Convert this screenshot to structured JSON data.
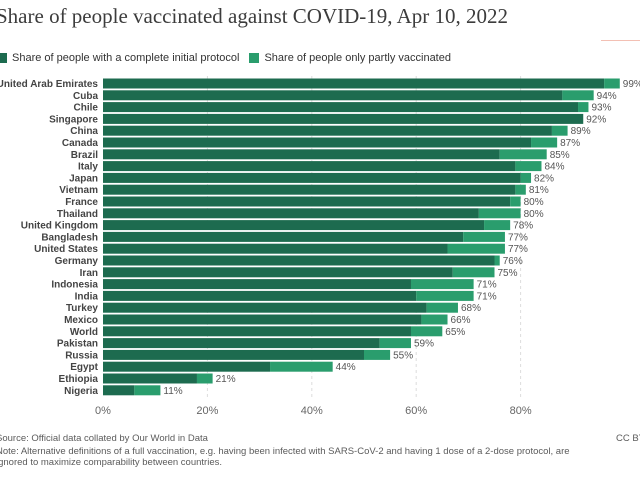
{
  "header": {
    "title": "Share of people vaccinated against COVID-19, Apr 10, 2022"
  },
  "legend": {
    "items": [
      {
        "label": "Share of people with a complete initial protocol",
        "color": "#1d6b4f"
      },
      {
        "label": "Share of people only partly vaccinated",
        "color": "#2a9d6d"
      }
    ]
  },
  "footer": {
    "source": "Source: Official data collated by Our World in Data",
    "note_line1": "Note: Alternative definitions of a full vaccination, e.g. having been infected with SARS-CoV-2 and having 1 dose of a 2-dose protocol, are",
    "note_line2": "ignored to maximize comparability between countries.",
    "license": "CC BY"
  },
  "chart_data": {
    "type": "bar",
    "orientation": "horizontal",
    "stacked": true,
    "title": "Share of people vaccinated against COVID-19, Apr 10, 2022",
    "xlim": [
      0,
      100
    ],
    "x_ticks": [
      "0%",
      "20%",
      "40%",
      "60%",
      "80%"
    ],
    "x_tick_values": [
      0,
      20,
      40,
      60,
      80
    ],
    "grid": true,
    "legend_position": "top-left",
    "categories": [
      "United Arab Emirates",
      "Cuba",
      "Chile",
      "Singapore",
      "China",
      "Canada",
      "Brazil",
      "Italy",
      "Japan",
      "Vietnam",
      "France",
      "Thailand",
      "United Kingdom",
      "Bangladesh",
      "United States",
      "Germany",
      "Iran",
      "Indonesia",
      "India",
      "Turkey",
      "Mexico",
      "World",
      "Pakistan",
      "Russia",
      "Egypt",
      "Ethiopia",
      "Nigeria"
    ],
    "series": [
      {
        "name": "Share of people with a complete initial protocol",
        "color": "#1d6b4f",
        "values": [
          96,
          88,
          91,
          92,
          86,
          82,
          76,
          79,
          80,
          79,
          78,
          72,
          73,
          69,
          66,
          75,
          67,
          59,
          60,
          62,
          61,
          59,
          53,
          50,
          32,
          18,
          6
        ]
      },
      {
        "name": "Share of people only partly vaccinated",
        "color": "#2a9d6d",
        "values": [
          3,
          6,
          2,
          0,
          3,
          5,
          9,
          5,
          2,
          2,
          2,
          8,
          5,
          8,
          11,
          1,
          8,
          12,
          11,
          6,
          5,
          6,
          6,
          5,
          12,
          3,
          5
        ]
      }
    ],
    "total_labels": [
      "99%",
      "94%",
      "93%",
      "92%",
      "89%",
      "87%",
      "85%",
      "84%",
      "82%",
      "81%",
      "80%",
      "80%",
      "78%",
      "77%",
      "77%",
      "76%",
      "75%",
      "71%",
      "71%",
      "68%",
      "66%",
      "65%",
      "59%",
      "55%",
      "44%",
      "21%",
      "11%"
    ]
  }
}
